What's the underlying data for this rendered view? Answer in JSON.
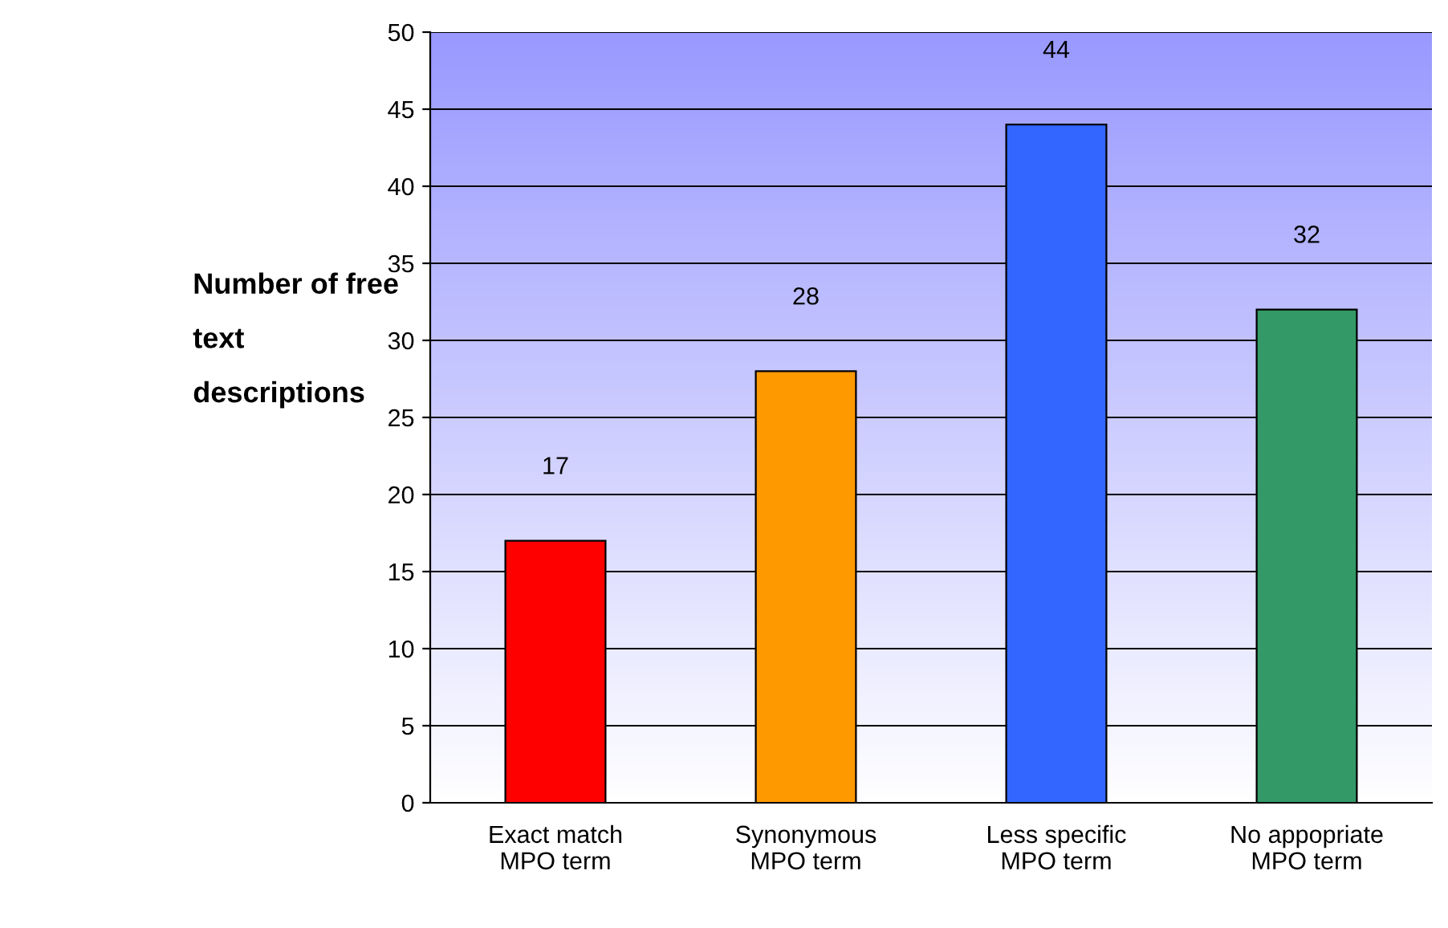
{
  "chart_data": {
    "type": "bar",
    "ylabel": "Number of free\ntext\ndescriptions",
    "categories": [
      "Exact match\nMPO term",
      "Synonymous\nMPO term",
      "Less specific\nMPO term",
      "No appopriate\nMPO term"
    ],
    "values": [
      17,
      28,
      44,
      32
    ],
    "colors": [
      "#ff0000",
      "#ff9900",
      "#3366ff",
      "#339966"
    ],
    "ylim": [
      0,
      50
    ],
    "yticks": [
      0,
      5,
      10,
      15,
      20,
      25,
      30,
      35,
      40,
      45,
      50
    ],
    "grid": "y",
    "data_labels": true,
    "legend": false
  }
}
